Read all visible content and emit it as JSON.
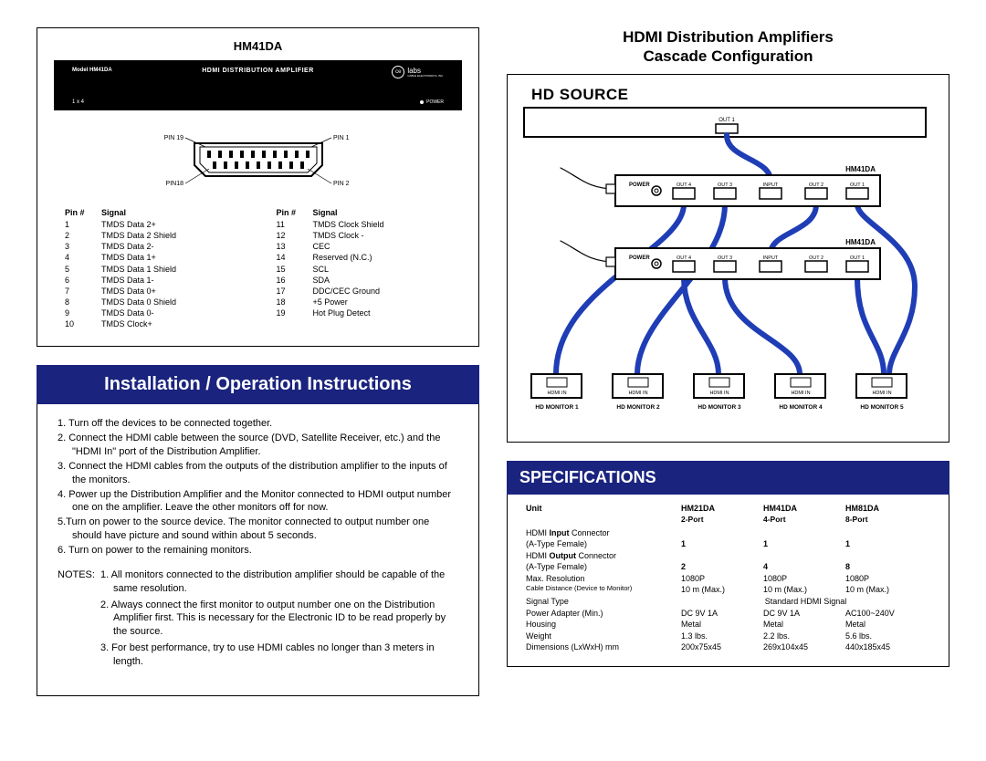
{
  "colors": {
    "blue_bar": "#1a237e",
    "cable_blue": "#1f3db5",
    "black": "#000000",
    "white": "#ffffff"
  },
  "left": {
    "product_title": "HM41DA",
    "device": {
      "model": "Model HM41DA",
      "center": "HDMI DISTRIBUTION AMPLIFIER",
      "brand": "labs",
      "brand_sub": "CABLE ELECTRONICS, INC.",
      "bl": "1 x 4",
      "br": "POWER"
    },
    "connector": {
      "pin_top_left": "PIN 19",
      "pin_top_right": "PIN 1",
      "pin_bot_left": "PIN18",
      "pin_bot_right": "PIN 2"
    },
    "pin_header1": "Pin #",
    "pin_header2": "Signal",
    "pins_left": [
      {
        "n": "1",
        "s": "TMDS Data 2+"
      },
      {
        "n": "2",
        "s": "TMDS Data 2 Shield"
      },
      {
        "n": "3",
        "s": "TMDS Data 2-"
      },
      {
        "n": "4",
        "s": "TMDS Data 1+"
      },
      {
        "n": "5",
        "s": "TMDS Data 1 Shield"
      },
      {
        "n": "6",
        "s": "TMDS Data 1-"
      },
      {
        "n": "7",
        "s": "TMDS Data 0+"
      },
      {
        "n": "8",
        "s": "TMDS Data 0 Shield"
      },
      {
        "n": "9",
        "s": "TMDS Data 0-"
      },
      {
        "n": "10",
        "s": "TMDS Clock+"
      }
    ],
    "pins_right": [
      {
        "n": "11",
        "s": "TMDS Clock Shield"
      },
      {
        "n": "12",
        "s": "TMDS Clock -"
      },
      {
        "n": "13",
        "s": "CEC"
      },
      {
        "n": "14",
        "s": "Reserved (N.C.)"
      },
      {
        "n": "15",
        "s": "SCL"
      },
      {
        "n": "16",
        "s": "SDA"
      },
      {
        "n": "17",
        "s": "DDC/CEC Ground"
      },
      {
        "n": "18",
        "s": "+5 Power"
      },
      {
        "n": "19",
        "s": "Hot Plug Detect"
      }
    ],
    "install_bar": "Installation / Operation Instructions",
    "steps": [
      "1. Turn off the devices to be connected together.",
      "2. Connect the HDMI cable between the source (DVD, Satellite Receiver, etc.) and the \"HDMI In\" port of the Distribution Amplifier.",
      "3. Connect the HDMI cables from the outputs of the distribution amplifier to the inputs of the monitors.",
      "4. Power up the Distribution Amplifier and the Monitor connected to HDMI output number one on the amplifier. Leave the other monitors off for now.",
      "5.Turn on power to the source device. The monitor connected to output number one should have picture and sound within about 5 seconds.",
      "6. Turn on power to the remaining monitors."
    ],
    "notes_label": "NOTES:",
    "notes": [
      "1. All monitors connected to the distribution amplifier should be capable of the same resolution.",
      "2. Always connect the first monitor to output number one on the Distribution Amplifier first. This is necessary for the Electronic ID to be read properly by the source.",
      "3. For best performance, try to use HDMI cables no longer than 3 meters in length."
    ]
  },
  "right": {
    "title1": "HDMI Distribution Amplifiers",
    "title2": "Cascade Configuration",
    "hd_source": "HD SOURCE",
    "diagram": {
      "amp_label": "HM41DA",
      "power": "POWER",
      "out4": "OUT 4",
      "out3": "OUT 3",
      "input": "INPUT",
      "out2": "OUT 2",
      "out1": "OUT 1",
      "out1_top": "OUT 1",
      "hdmi_in": "HDMI IN",
      "monitors": [
        "HD MONITOR 1",
        "HD MONITOR 2",
        "HD MONITOR 3",
        "HD MONITOR 4",
        "HD MONITOR 5"
      ]
    },
    "spec_bar": "SPECIFICATIONS",
    "spec": {
      "head": [
        "Unit",
        "HM21DA",
        "HM41DA",
        "HM81DA"
      ],
      "sub": [
        "",
        "2-Port",
        "4-Port",
        "8-Port"
      ],
      "rows": [
        {
          "label": "HDMI Input Connector",
          "sub": "(A-Type Female)",
          "v": [
            "1",
            "1",
            "1"
          ],
          "bold": true,
          "boldPart": "Input"
        },
        {
          "label": "HDMI Output Connector",
          "sub": "(A-Type Female)",
          "v": [
            "2",
            "4",
            "8"
          ],
          "bold": true,
          "boldPart": "Output"
        },
        {
          "label": "Max. Resolution",
          "v": [
            "1080P",
            "1080P",
            "1080P"
          ]
        },
        {
          "label": "Cable Distance (Device to Monitor)",
          "v": [
            "10 m (Max.)",
            "10 m (Max.)",
            "10 m (Max.)"
          ],
          "labelSmall": true
        },
        {
          "label": "Signal Type",
          "span": "Standard HDMI Signal"
        },
        {
          "label": "Power Adapter (Min.)",
          "v": [
            "DC 9V 1A",
            "DC 9V 1A",
            "AC100~240V"
          ]
        },
        {
          "label": "Housing",
          "v": [
            "Metal",
            "Metal",
            "Metal"
          ]
        },
        {
          "label": "Weight",
          "v": [
            "1.3 lbs.",
            "2.2 lbs.",
            "5.6 lbs."
          ]
        },
        {
          "label": "Dimensions (LxWxH) mm",
          "v": [
            "200x75x45",
            "269x104x45",
            "440x185x45"
          ]
        }
      ]
    }
  }
}
